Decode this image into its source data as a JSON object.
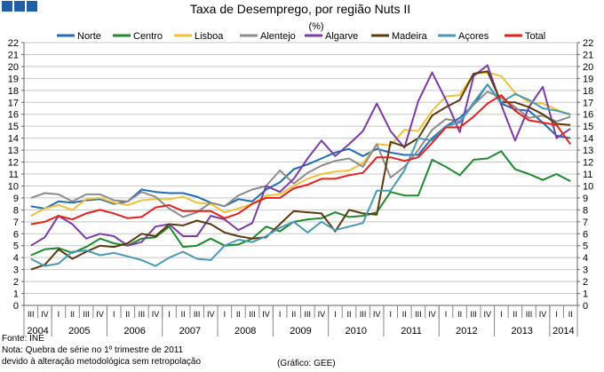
{
  "header": {
    "logo": "GEE logo"
  },
  "chart_data": {
    "type": "line",
    "title": "Taxa de Desemprego, por região Nuts II",
    "unit_label": "(%)",
    "ylim": [
      0,
      22
    ],
    "yticks": [
      0,
      1,
      2,
      3,
      4,
      5,
      6,
      7,
      8,
      9,
      10,
      11,
      12,
      13,
      14,
      15,
      16,
      17,
      18,
      19,
      20,
      21,
      22
    ],
    "quarters": [
      "III",
      "IV",
      "I",
      "II",
      "III",
      "IV",
      "I",
      "II",
      "III",
      "IV",
      "I",
      "II",
      "III",
      "IV",
      "I",
      "II",
      "III",
      "IV",
      "I",
      "II",
      "III",
      "IV",
      "I",
      "II",
      "III",
      "IV",
      "I",
      "II",
      "III",
      "IV",
      "I",
      "II",
      "III",
      "IV",
      "I",
      "II",
      "III",
      "IV",
      "I",
      "II"
    ],
    "years": [
      {
        "label": "2004",
        "start": 0,
        "count": 2
      },
      {
        "label": "2005",
        "start": 2,
        "count": 4
      },
      {
        "label": "2006",
        "start": 6,
        "count": 4
      },
      {
        "label": "2007",
        "start": 10,
        "count": 4
      },
      {
        "label": "2008",
        "start": 14,
        "count": 4
      },
      {
        "label": "2009",
        "start": 18,
        "count": 4
      },
      {
        "label": "2010",
        "start": 22,
        "count": 4
      },
      {
        "label": "2011",
        "start": 26,
        "count": 4
      },
      {
        "label": "2012",
        "start": 30,
        "count": 4
      },
      {
        "label": "2013",
        "start": 34,
        "count": 4
      },
      {
        "label": "2014",
        "start": 38,
        "count": 2
      }
    ],
    "series": [
      {
        "name": "Norte",
        "color": "#1f6bb5",
        "values": [
          8.3,
          8.1,
          8.7,
          8.6,
          8.8,
          8.9,
          8.5,
          8.7,
          9.7,
          9.5,
          9.4,
          9.4,
          9.1,
          8.6,
          8.3,
          8.9,
          8.7,
          9.7,
          10.3,
          11.4,
          11.8,
          12.3,
          12.8,
          13.1,
          12.5,
          13.1,
          12.8,
          12.6,
          12.6,
          14.0,
          15.0,
          15.7,
          16.8,
          18.5,
          16.9,
          16.4,
          16.3,
          15.3,
          14.2,
          14.0
        ]
      },
      {
        "name": "Centro",
        "color": "#1e8a2e",
        "values": [
          4.2,
          4.7,
          4.8,
          4.4,
          4.9,
          5.6,
          5.2,
          5.0,
          5.6,
          5.7,
          6.6,
          4.9,
          5.0,
          5.6,
          5.0,
          5.1,
          5.6,
          6.6,
          6.2,
          7.0,
          7.2,
          7.3,
          7.8,
          7.4,
          7.5,
          7.8,
          9.5,
          9.2,
          9.2,
          12.2,
          11.6,
          10.9,
          12.2,
          12.3,
          12.9,
          11.4,
          11.0,
          10.5,
          11.0,
          10.4
        ]
      },
      {
        "name": "Lisboa",
        "color": "#f0c239",
        "values": [
          7.5,
          8.1,
          8.4,
          8.0,
          8.9,
          9.0,
          8.6,
          8.4,
          8.8,
          8.9,
          8.9,
          9.1,
          8.6,
          8.5,
          7.8,
          8.1,
          8.5,
          9.2,
          9.3,
          10.0,
          10.6,
          11.0,
          11.2,
          11.3,
          11.9,
          13.5,
          13.4,
          14.7,
          14.6,
          16.3,
          17.5,
          17.6,
          19.4,
          19.5,
          19.2,
          17.8,
          17.0,
          16.9,
          16.4,
          15.9
        ]
      },
      {
        "name": "Alentejo",
        "color": "#8c8c8c",
        "values": [
          9.0,
          9.4,
          9.3,
          8.7,
          9.3,
          9.3,
          8.8,
          8.7,
          9.5,
          9.1,
          8.1,
          7.4,
          7.8,
          8.6,
          8.3,
          9.2,
          9.7,
          10.0,
          11.3,
          10.2,
          11.1,
          11.7,
          12.1,
          12.3,
          11.6,
          13.5,
          10.7,
          11.6,
          13.0,
          14.7,
          15.6,
          15.4,
          16.8,
          17.9,
          17.4,
          16.6,
          15.7,
          15.9,
          15.4,
          15.8
        ]
      },
      {
        "name": "Algarve",
        "color": "#7b3ba8",
        "values": [
          5.0,
          5.7,
          7.5,
          6.8,
          5.6,
          6.0,
          5.8,
          5.0,
          5.3,
          6.6,
          6.8,
          5.8,
          5.8,
          7.5,
          7.2,
          6.3,
          6.9,
          10.0,
          9.5,
          10.6,
          12.3,
          13.8,
          12.5,
          13.5,
          14.6,
          16.9,
          14.6,
          13.2,
          17.1,
          19.5,
          17.2,
          14.5,
          19.2,
          20.1,
          16.8,
          13.8,
          16.6,
          18.3,
          14.0,
          14.8
        ]
      },
      {
        "name": "Madeira",
        "color": "#5c3a10",
        "values": [
          3.0,
          3.4,
          4.7,
          3.9,
          4.5,
          5.0,
          4.9,
          5.2,
          6.0,
          5.8,
          6.8,
          6.7,
          7.1,
          6.8,
          6.1,
          5.8,
          5.6,
          5.7,
          6.8,
          7.9,
          7.8,
          7.7,
          6.2,
          8.0,
          7.7,
          7.6,
          13.7,
          13.3,
          14.0,
          15.9,
          16.6,
          17.2,
          19.4,
          19.6,
          17.0,
          17.0,
          16.6,
          16.0,
          15.2,
          15.1
        ]
      },
      {
        "name": "Açores",
        "color": "#4a9ab5",
        "values": [
          3.9,
          3.3,
          3.5,
          4.5,
          4.6,
          4.2,
          4.4,
          4.1,
          3.8,
          3.3,
          4.0,
          4.5,
          3.9,
          3.8,
          5.0,
          5.5,
          5.3,
          5.8,
          6.5,
          7.0,
          6.1,
          7.0,
          6.3,
          6.6,
          6.9,
          9.6,
          9.6,
          11.3,
          14.0,
          13.8,
          15.0,
          15.3,
          17.0,
          18.5,
          17.0,
          17.7,
          17.2,
          16.5,
          16.3,
          16.0
        ]
      },
      {
        "name": "Total",
        "color": "#e8201b",
        "values": [
          6.8,
          7.0,
          7.5,
          7.2,
          7.7,
          8.0,
          7.7,
          7.3,
          7.4,
          8.2,
          8.4,
          7.9,
          7.9,
          7.9,
          7.3,
          7.7,
          8.5,
          9.0,
          9.0,
          9.8,
          10.1,
          10.6,
          10.6,
          10.9,
          11.1,
          12.4,
          12.4,
          12.1,
          12.4,
          13.6,
          14.9,
          14.9,
          15.8,
          16.9,
          17.6,
          16.3,
          15.5,
          15.3,
          15.1,
          13.5
        ]
      }
    ]
  },
  "footer": {
    "source": "Fonte: INE",
    "note_line1": "Nota: Quebra de série no 1º trimestre de 2011",
    "note_line2": "devido à alteração metodológica sem retropolação",
    "credit": "(Gráfico: GEE)"
  }
}
